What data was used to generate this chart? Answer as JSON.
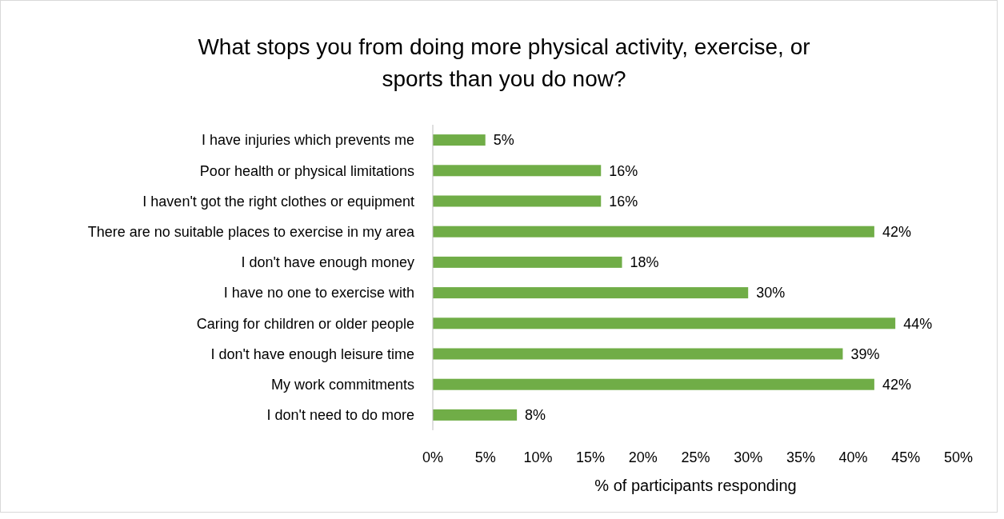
{
  "chart_data": {
    "type": "bar",
    "orientation": "horizontal",
    "title": "What stops you from doing more physical activity, exercise, or sports than you do now?",
    "xlabel": "% of participants responding",
    "categories": [
      "I have injuries which prevents me",
      "Poor health or physical limitations",
      "I haven't got the right clothes or equipment",
      "There are no suitable places to exercise in my area",
      "I don't have enough money",
      "I have no one to exercise with",
      "Caring for children or older people",
      "I don't have enough leisure time",
      "My work commitments",
      "I don't need to do more"
    ],
    "values": [
      5,
      16,
      16,
      42,
      18,
      30,
      44,
      39,
      42,
      8
    ],
    "value_labels": [
      "5%",
      "16%",
      "16%",
      "42%",
      "18%",
      "30%",
      "44%",
      "39%",
      "42%",
      "8%"
    ],
    "color": "#70ad47",
    "xlim": [
      0,
      50
    ],
    "xticks": [
      {
        "value": 0,
        "label": "0%"
      },
      {
        "value": 5,
        "label": "5%"
      },
      {
        "value": 10,
        "label": "10%"
      },
      {
        "value": 15,
        "label": "15%"
      },
      {
        "value": 20,
        "label": "20%"
      },
      {
        "value": 25,
        "label": "25%"
      },
      {
        "value": 30,
        "label": "30%"
      },
      {
        "value": 35,
        "label": "35%"
      },
      {
        "value": 40,
        "label": "40%"
      },
      {
        "value": 45,
        "label": "45%"
      },
      {
        "value": 50,
        "label": "50%"
      }
    ],
    "grid": false
  }
}
